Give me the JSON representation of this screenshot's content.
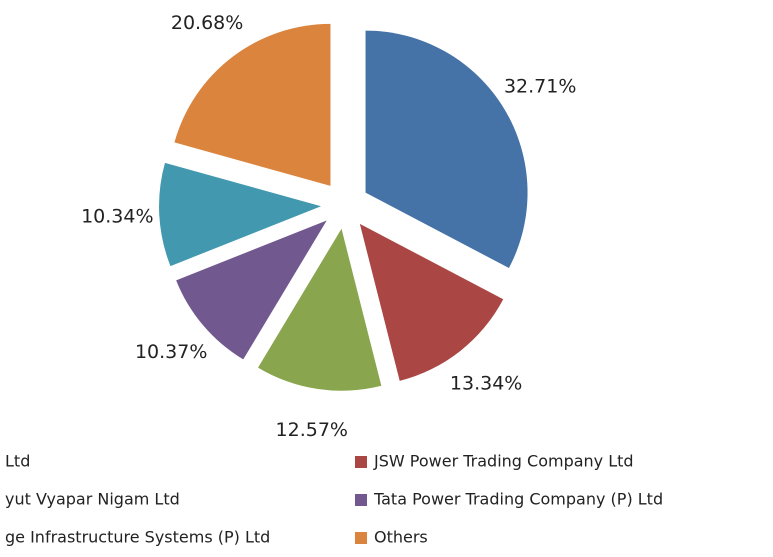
{
  "chart_data": {
    "type": "pie",
    "categories": [
      "Ltd",
      "JSW Power Trading Company Ltd",
      "yut Vyapar Nigam Ltd",
      "Tata Power Trading Company (P) Ltd",
      "ge Infrastructure Systems (P) Ltd",
      "Others"
    ],
    "values": [
      32.71,
      13.34,
      12.57,
      10.37,
      10.34,
      20.68
    ],
    "value_labels": [
      "32.71%",
      "13.34%",
      "12.57%",
      "10.37%",
      "10.34%",
      "20.68%"
    ],
    "colors": [
      "#4572a7",
      "#aa4643",
      "#89a54e",
      "#71588f",
      "#4198af",
      "#db843d"
    ],
    "exploded": true
  }
}
